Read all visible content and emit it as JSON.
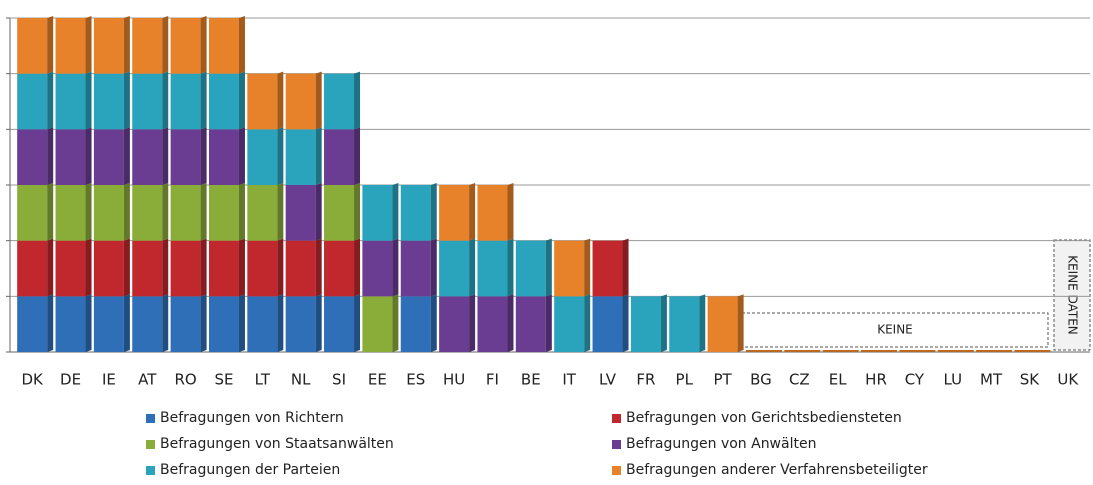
{
  "chart_data": {
    "type": "bar",
    "stacked": true,
    "categories": [
      "DK",
      "DE",
      "IE",
      "AT",
      "RO",
      "SE",
      "LT",
      "NL",
      "SI",
      "EE",
      "ES",
      "HU",
      "FI",
      "BE",
      "IT",
      "LV",
      "FR",
      "PL",
      "PT",
      "BG",
      "CZ",
      "EL",
      "HR",
      "CY",
      "LU",
      "MT",
      "SK",
      "UK"
    ],
    "series": [
      {
        "name": "Befragungen von Richtern",
        "color": "#2e6fb7",
        "values": [
          1,
          1,
          1,
          1,
          1,
          1,
          1,
          1,
          1,
          0,
          1,
          0,
          0,
          0,
          0,
          1,
          0,
          0,
          0,
          0,
          0,
          0,
          0,
          0,
          0,
          0,
          0,
          null
        ]
      },
      {
        "name": "Befragungen von Gerichtsbediensteten",
        "color": "#c0282e",
        "values": [
          1,
          1,
          1,
          1,
          1,
          1,
          1,
          1,
          1,
          0,
          0,
          0,
          0,
          0,
          0,
          1,
          0,
          0,
          0,
          0,
          0,
          0,
          0,
          0,
          0,
          0,
          0,
          null
        ]
      },
      {
        "name": "Befragungen von Staatsanwälten",
        "color": "#8aad3a",
        "values": [
          1,
          1,
          1,
          1,
          1,
          1,
          1,
          0,
          1,
          1,
          0,
          0,
          0,
          0,
          0,
          0,
          0,
          0,
          0,
          0,
          0,
          0,
          0,
          0,
          0,
          0,
          0,
          null
        ]
      },
      {
        "name": "Befragungen von Anwälten",
        "color": "#6a3d92",
        "values": [
          1,
          1,
          1,
          1,
          1,
          1,
          0,
          1,
          1,
          1,
          1,
          1,
          1,
          1,
          0,
          0,
          0,
          0,
          0,
          0,
          0,
          0,
          0,
          0,
          0,
          0,
          0,
          null
        ]
      },
      {
        "name": "Befragungen der Parteien",
        "color": "#2aa3bd",
        "values": [
          1,
          1,
          1,
          1,
          1,
          1,
          1,
          1,
          1,
          1,
          1,
          1,
          1,
          1,
          1,
          0,
          1,
          1,
          0,
          0,
          0,
          0,
          0,
          0,
          0,
          0,
          0,
          null
        ]
      },
      {
        "name": "Befragungen anderer Verfahrensbeteiligter",
        "color": "#e8822a",
        "values": [
          1,
          1,
          1,
          1,
          1,
          1,
          1,
          1,
          0,
          0,
          0,
          1,
          1,
          0,
          1,
          0,
          0,
          0,
          1,
          0,
          0,
          0,
          0,
          0,
          0,
          0,
          0,
          null
        ]
      }
    ],
    "ylim": [
      0,
      6
    ],
    "yticks": [
      0,
      1,
      2,
      3,
      4,
      5,
      6
    ],
    "grid": true,
    "annotations": [
      "KEINE",
      "KEINE DATEN"
    ]
  }
}
